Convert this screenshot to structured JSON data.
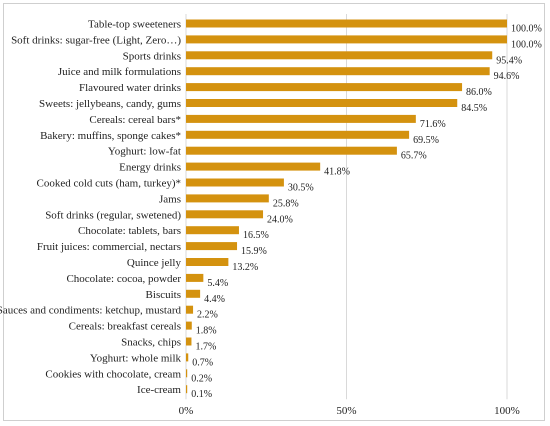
{
  "chart_data": {
    "type": "bar",
    "orientation": "horizontal",
    "categories": [
      "Table-top sweeteners",
      "Soft drinks: sugar-free (Light, Zero…)",
      "Sports drinks",
      "Juice and milk formulations",
      "Flavoured water drinks",
      "Sweets: jellybeans, candy, gums",
      "Cereals: cereal bars*",
      "Bakery: muffins, sponge cakes*",
      "Yoghurt: low-fat",
      "Energy drinks",
      "Cooked cold cuts (ham, turkey)*",
      "Jams",
      "Soft drinks (regular, swetened)",
      "Chocolate: tablets, bars",
      "Fruit juices: commercial, nectars",
      "Quince jelly",
      "Chocolate: cocoa, powder",
      "Biscuits",
      "Sauces and condiments: ketchup, mustard",
      "Cereals: breakfast cereals",
      "Snacks, chips",
      "Yoghurt: whole milk",
      "Cookies with chocolate, cream",
      "Ice-cream"
    ],
    "values": [
      100.0,
      100.0,
      95.4,
      94.6,
      86.0,
      84.5,
      71.6,
      69.5,
      65.7,
      41.8,
      30.5,
      25.8,
      24.0,
      16.5,
      15.9,
      13.2,
      5.4,
      4.4,
      2.2,
      1.8,
      1.7,
      0.7,
      0.2,
      0.1
    ],
    "value_labels": [
      "100.0%",
      "100.0%",
      "95.4%",
      "94.6%",
      "86.0%",
      "84.5%",
      "71.6%",
      "69.5%",
      "65.7%",
      "41.8%",
      "30.5%",
      "25.8%",
      "24.0%",
      "16.5%",
      "15.9%",
      "13.2%",
      "5.4%",
      "4.4%",
      "2.2%",
      "1.8%",
      "1.7%",
      "0.7%",
      "0.2%",
      "0.1%"
    ],
    "xlim": [
      0,
      100
    ],
    "xticks": [
      0,
      50,
      100
    ],
    "xtick_labels": [
      "0%",
      "50%",
      "100%"
    ],
    "grid": "vertical",
    "legend": "none",
    "colors": {
      "bar": "#D4920F",
      "grid": "#d9d9d9",
      "text": "#222222"
    }
  }
}
